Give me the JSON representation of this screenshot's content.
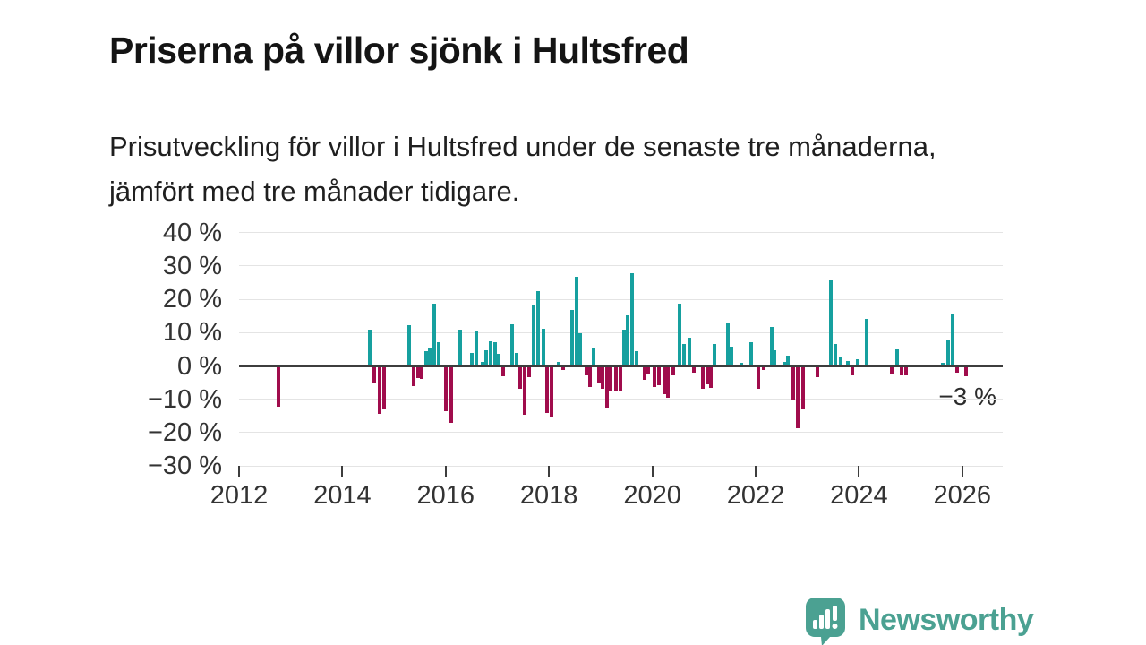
{
  "page": {
    "title": "Priserna på villor sjönk i Hultsfred",
    "subtitle": "Prisutveckling för villor i Hultsfred under de senaste tre månaderna, jämfört med tre månader tidigare."
  },
  "chart_data": {
    "type": "bar",
    "title": "Priserna på villor sjönk i Hultsfred",
    "subtitle": "Prisutveckling för villor i Hultsfred under de senaste tre månaderna, jämfört med tre månader tidigare.",
    "xlabel": "",
    "ylabel": "",
    "unit": "%",
    "xlim": [
      2011.9,
      2026.8
    ],
    "ylim": [
      -30,
      40
    ],
    "grid": true,
    "legend": "none",
    "colors": {
      "positive": "#16a09f",
      "negative": "#a00c4c",
      "zero_line": "#3d3d3d",
      "gridline": "#e4e4e4"
    },
    "y_ticks": [
      {
        "v": 40,
        "label": "40 %"
      },
      {
        "v": 30,
        "label": "30 %"
      },
      {
        "v": 20,
        "label": "20 %"
      },
      {
        "v": 10,
        "label": "10 %"
      },
      {
        "v": 0,
        "label": "0 %"
      },
      {
        "v": -10,
        "label": "−10 %"
      },
      {
        "v": -20,
        "label": "−20 %"
      },
      {
        "v": -30,
        "label": "−30 %"
      }
    ],
    "x_ticks": [
      {
        "v": 2012,
        "label": "2012"
      },
      {
        "v": 2014,
        "label": "2014"
      },
      {
        "v": 2016,
        "label": "2016"
      },
      {
        "v": 2018,
        "label": "2018"
      },
      {
        "v": 2020,
        "label": "2020"
      },
      {
        "v": 2022,
        "label": "2022"
      },
      {
        "v": 2024,
        "label": "2024"
      },
      {
        "v": 2026,
        "label": "2026"
      }
    ],
    "annotation": {
      "text": "−3 %",
      "x": 2026.07,
      "y": -3
    },
    "points": [
      [
        2012.77,
        -12.1
      ],
      [
        2014.53,
        11
      ],
      [
        2014.61,
        -5
      ],
      [
        2014.72,
        -14.4
      ],
      [
        2014.8,
        -13.1
      ],
      [
        2015.29,
        12.3
      ],
      [
        2015.38,
        -6
      ],
      [
        2015.46,
        -3.5
      ],
      [
        2015.53,
        -3.9
      ],
      [
        2015.63,
        4.5
      ],
      [
        2015.7,
        5.4
      ],
      [
        2015.77,
        18.6
      ],
      [
        2015.87,
        7
      ],
      [
        2016.0,
        -13.6
      ],
      [
        2016.11,
        -17.1
      ],
      [
        2016.28,
        11
      ],
      [
        2016.51,
        4
      ],
      [
        2016.6,
        10.5
      ],
      [
        2016.71,
        1.3
      ],
      [
        2016.78,
        4.7
      ],
      [
        2016.87,
        7.3
      ],
      [
        2016.95,
        7
      ],
      [
        2017.02,
        3.5
      ],
      [
        2017.12,
        -3.1
      ],
      [
        2017.29,
        12.4
      ],
      [
        2017.37,
        3.8
      ],
      [
        2017.45,
        -6.8
      ],
      [
        2017.53,
        -14.6
      ],
      [
        2017.62,
        -3.3
      ],
      [
        2017.7,
        18.4
      ],
      [
        2017.79,
        22.5
      ],
      [
        2017.89,
        11.1
      ],
      [
        2017.97,
        -14.2
      ],
      [
        2018.04,
        -15.2
      ],
      [
        2018.18,
        1.1
      ],
      [
        2018.27,
        -1.3
      ],
      [
        2018.44,
        16.8
      ],
      [
        2018.53,
        26.7
      ],
      [
        2018.61,
        9.8
      ],
      [
        2018.72,
        -2.8
      ],
      [
        2018.79,
        -6.4
      ],
      [
        2018.86,
        5.3
      ],
      [
        2018.96,
        -5.1
      ],
      [
        2019.03,
        -6.8
      ],
      [
        2019.13,
        -12.4
      ],
      [
        2019.2,
        -7.3
      ],
      [
        2019.29,
        -7.7
      ],
      [
        2019.38,
        -7.6
      ],
      [
        2019.46,
        11
      ],
      [
        2019.53,
        15.3
      ],
      [
        2019.61,
        27.7
      ],
      [
        2019.69,
        4.4
      ],
      [
        2019.85,
        -4.2
      ],
      [
        2019.92,
        -2.4
      ],
      [
        2020.05,
        -6.4
      ],
      [
        2020.12,
        -5.8
      ],
      [
        2020.23,
        -8.4
      ],
      [
        2020.31,
        -9.5
      ],
      [
        2020.4,
        -2.8
      ],
      [
        2020.52,
        18.8
      ],
      [
        2020.62,
        6.7
      ],
      [
        2020.71,
        8.5
      ],
      [
        2020.81,
        -2
      ],
      [
        2020.97,
        -6.8
      ],
      [
        2021.06,
        -5.5
      ],
      [
        2021.13,
        -6.7
      ],
      [
        2021.21,
        6.7
      ],
      [
        2021.47,
        12.9
      ],
      [
        2021.54,
        5.8
      ],
      [
        2021.72,
        0.9
      ],
      [
        2021.91,
        7
      ],
      [
        2022.06,
        -6.8
      ],
      [
        2022.15,
        -1.2
      ],
      [
        2022.31,
        11.8
      ],
      [
        2022.37,
        4.7
      ],
      [
        2022.55,
        1.3
      ],
      [
        2022.63,
        3
      ],
      [
        2022.72,
        -10.4
      ],
      [
        2022.82,
        -18.8
      ],
      [
        2022.91,
        -12.8
      ],
      [
        2023.2,
        -3.4
      ],
      [
        2023.45,
        25.6
      ],
      [
        2023.55,
        6.5
      ],
      [
        2023.64,
        2.9
      ],
      [
        2023.79,
        1.5
      ],
      [
        2023.88,
        -2.9
      ],
      [
        2023.97,
        2.1
      ],
      [
        2024.15,
        14
      ],
      [
        2024.64,
        -2.4
      ],
      [
        2024.73,
        4.9
      ],
      [
        2024.83,
        -2.9
      ],
      [
        2024.91,
        -2.9
      ],
      [
        2025.63,
        0.9
      ],
      [
        2025.72,
        7.8
      ],
      [
        2025.81,
        15.6
      ],
      [
        2025.9,
        -2
      ],
      [
        2026.07,
        -3
      ]
    ]
  },
  "logo": {
    "text": "Newsworthy",
    "icon": "newsworthy-bar-chart-speech-bubble-icon",
    "color": "#4ba192"
  }
}
